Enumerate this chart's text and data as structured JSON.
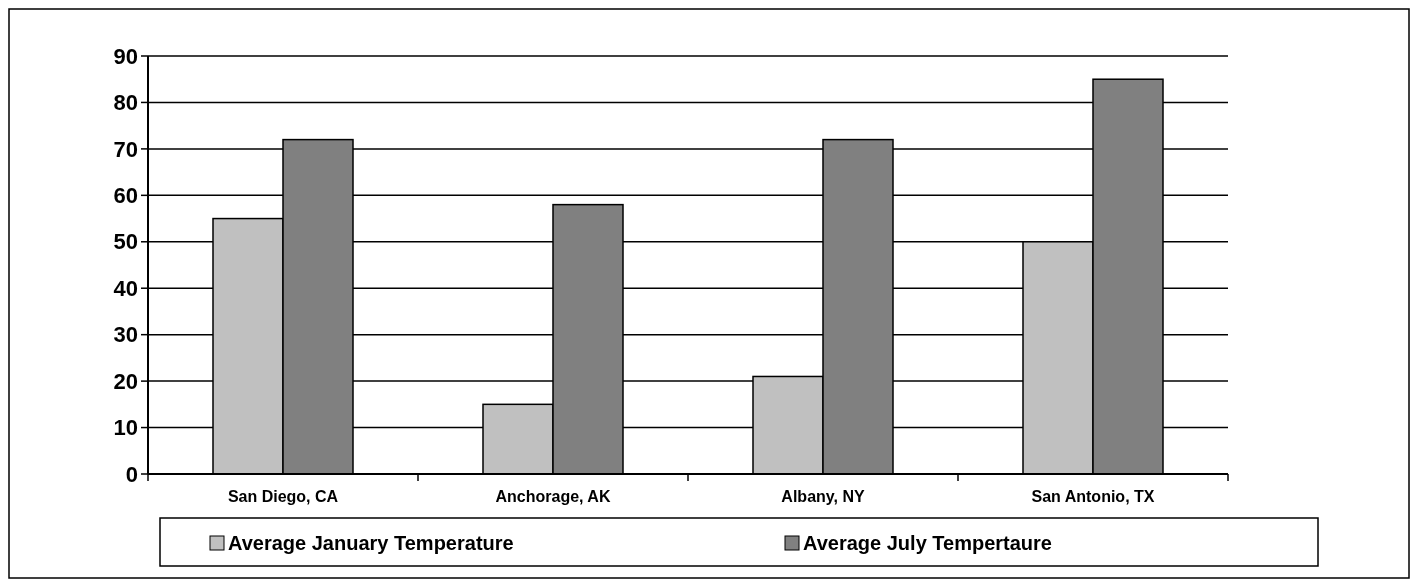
{
  "chart_data": {
    "type": "bar",
    "categories": [
      "San Diego, CA",
      "Anchorage, AK",
      "Albany, NY",
      "San Antonio, TX"
    ],
    "series": [
      {
        "name": "Average January Temperature",
        "color": "#c0c0c0",
        "values": [
          55,
          15,
          21,
          50
        ]
      },
      {
        "name": "Average July Tempertaure",
        "color": "#808080",
        "values": [
          72,
          58,
          72,
          85
        ]
      }
    ],
    "ylim": [
      0,
      90
    ],
    "yticks": [
      0,
      10,
      20,
      30,
      40,
      50,
      60,
      70,
      80,
      90
    ],
    "grid": "y",
    "legend": "bottom"
  }
}
